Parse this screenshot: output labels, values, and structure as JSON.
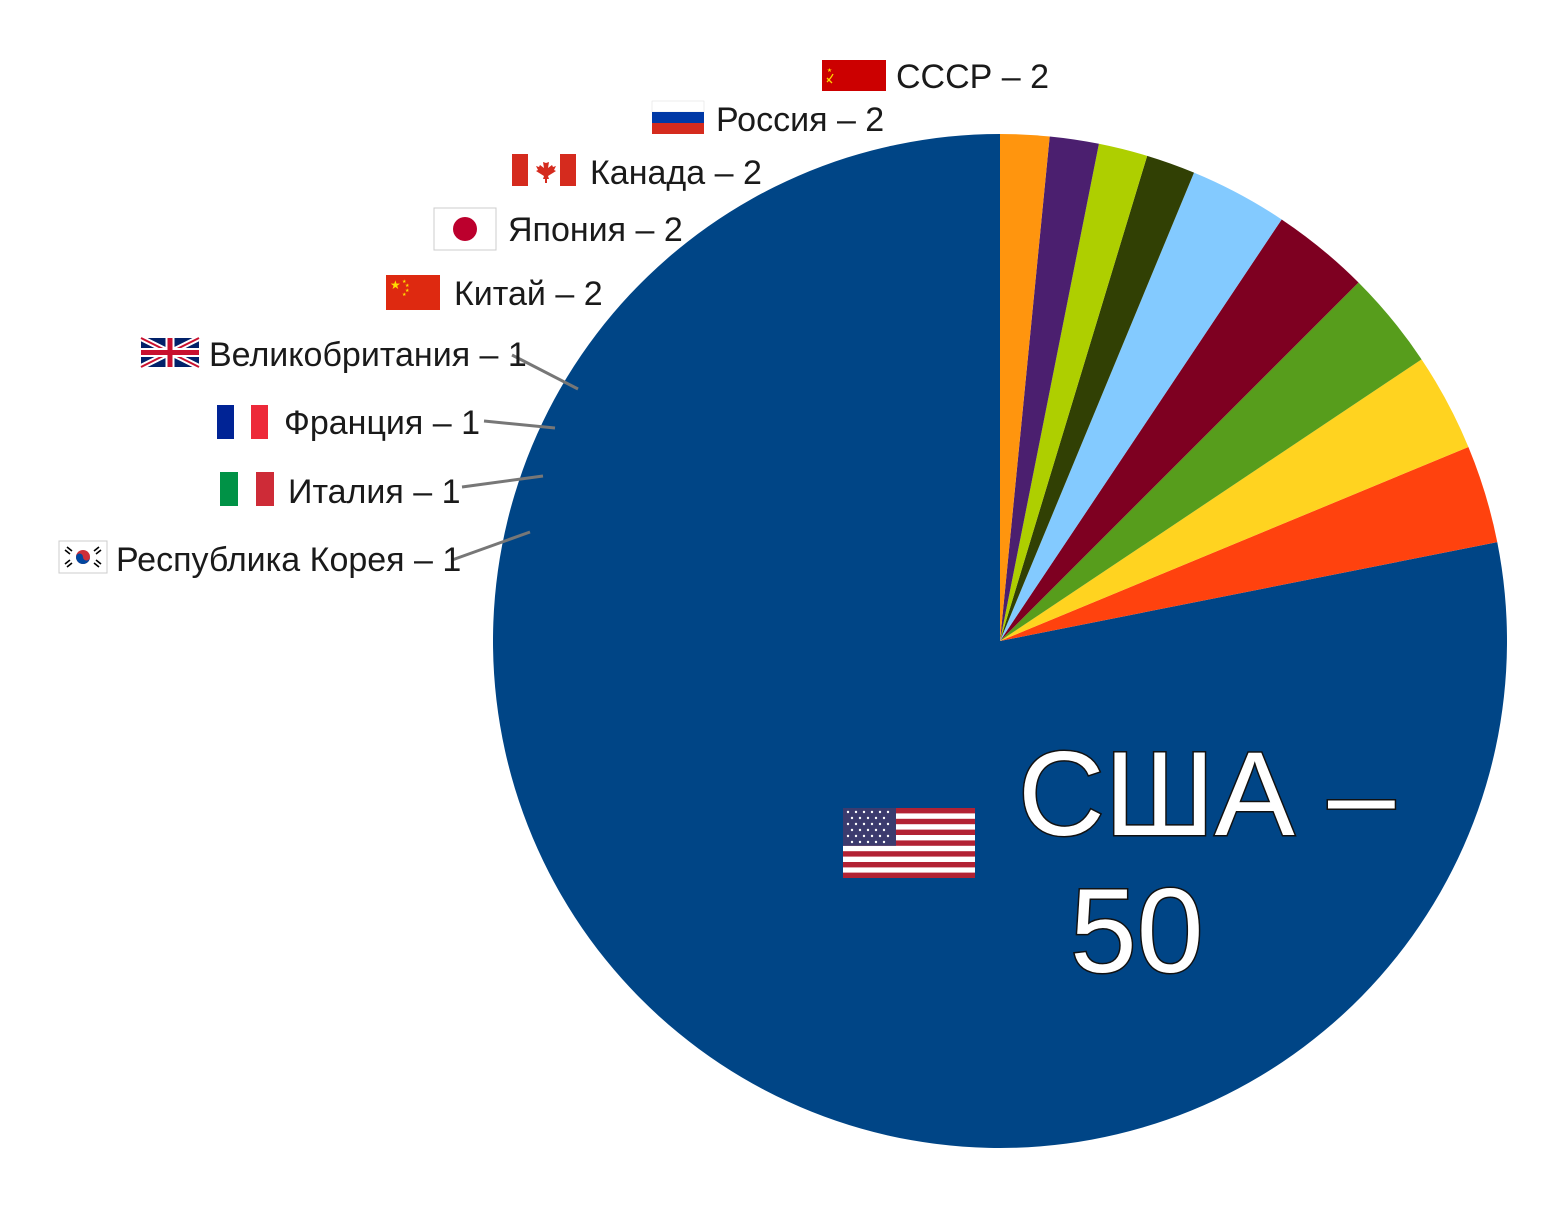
{
  "chart_data": {
    "type": "pie",
    "title": "",
    "start": "top",
    "direction": "counterclockwise",
    "slices": [
      {
        "label": "США",
        "value": 50,
        "display": "США –",
        "display2": "50",
        "color": "#004586",
        "flag": "usa-flag-icon"
      },
      {
        "label": "СССР",
        "value": 2,
        "display": "СССР – 2",
        "color": "#ff420e",
        "flag": "ussr-flag-icon"
      },
      {
        "label": "Россия",
        "value": 2,
        "display": "Россия – 2",
        "color": "#ffd320",
        "flag": "russia-flag-icon"
      },
      {
        "label": "Канада",
        "value": 2,
        "display": "Канада – 2",
        "color": "#579d1c",
        "flag": "canada-flag-icon"
      },
      {
        "label": "Япония",
        "value": 2,
        "display": "Япония – 2",
        "color": "#7e0021",
        "flag": "japan-flag-icon"
      },
      {
        "label": "Китай",
        "value": 2,
        "display": "Китай – 2",
        "color": "#83caff",
        "flag": "china-flag-icon"
      },
      {
        "label": "Великобритания",
        "value": 1,
        "display": "Великобритания – 1",
        "color": "#314004",
        "flag": "uk-flag-icon"
      },
      {
        "label": "Франция",
        "value": 1,
        "display": "Франция – 1",
        "color": "#aecf00",
        "flag": "france-flag-icon"
      },
      {
        "label": "Италия",
        "value": 1,
        "display": "Италия – 1",
        "color": "#4b1f6f",
        "flag": "italy-flag-icon"
      },
      {
        "label": "Республика Корея",
        "value": 1,
        "display": "Республика Корея – 1",
        "color": "#ff950e",
        "flag": "korea-flag-icon"
      }
    ]
  }
}
